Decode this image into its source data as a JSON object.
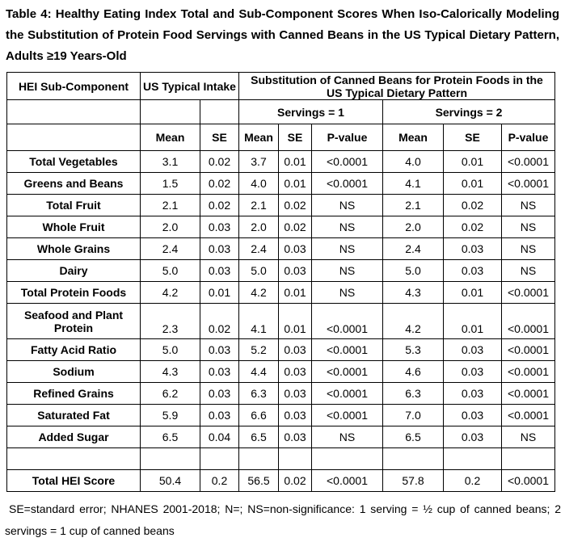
{
  "document": {
    "title": "Table 4: Healthy Eating Index Total and Sub-Component Scores When Iso-Calorically Modeling the Substitution of Protein Food Servings with Canned Beans in the US Typical Dietary Pattern, Adults ≥19 Years-Old",
    "footnote": "SE=standard error; NHANES 2001-2018; N=; NS=non-significance: 1 serving = ½ cup of canned beans; 2 servings = 1 cup of canned beans"
  },
  "colors": {
    "background": "#ffffff",
    "text": "#000000",
    "border": "#000000"
  },
  "table": {
    "corner_label": "HEI Sub-Component",
    "us_typical_header": "US Typical Intake",
    "substitution_header": "Substitution of Canned Beans for Protein Foods in the US Typical Dietary Pattern",
    "servings_headers": [
      "Servings = 1",
      "Servings = 2"
    ],
    "stat_headers": [
      "Mean",
      "SE",
      "Mean",
      "SE",
      "P-value",
      "Mean",
      "SE",
      "P-value"
    ],
    "rows": [
      {
        "label": "Total Vegetables",
        "values": [
          "3.1",
          "0.02",
          "3.7",
          "0.01",
          "<0.0001",
          "4.0",
          "0.01",
          "<0.0001"
        ]
      },
      {
        "label": "Greens and Beans",
        "values": [
          "1.5",
          "0.02",
          "4.0",
          "0.01",
          "<0.0001",
          "4.1",
          "0.01",
          "<0.0001"
        ]
      },
      {
        "label": "Total Fruit",
        "values": [
          "2.1",
          "0.02",
          "2.1",
          "0.02",
          "NS",
          "2.1",
          "0.02",
          "NS"
        ]
      },
      {
        "label": "Whole Fruit",
        "values": [
          "2.0",
          "0.03",
          "2.0",
          "0.02",
          "NS",
          "2.0",
          "0.02",
          "NS"
        ]
      },
      {
        "label": "Whole Grains",
        "values": [
          "2.4",
          "0.03",
          "2.4",
          "0.03",
          "NS",
          "2.4",
          "0.03",
          "NS"
        ]
      },
      {
        "label": "Dairy",
        "values": [
          "5.0",
          "0.03",
          "5.0",
          "0.03",
          "NS",
          "5.0",
          "0.03",
          "NS"
        ]
      },
      {
        "label": "Total Protein Foods",
        "values": [
          "4.2",
          "0.01",
          "4.2",
          "0.01",
          "NS",
          "4.3",
          "0.01",
          "<0.0001"
        ]
      },
      {
        "label": "Seafood and Plant Protein",
        "tall": true,
        "values": [
          "2.3",
          "0.02",
          "4.1",
          "0.01",
          "<0.0001",
          "4.2",
          "0.01",
          "<0.0001"
        ]
      },
      {
        "label": "Fatty Acid Ratio",
        "values": [
          "5.0",
          "0.03",
          "5.2",
          "0.03",
          "<0.0001",
          "5.3",
          "0.03",
          "<0.0001"
        ]
      },
      {
        "label": "Sodium",
        "values": [
          "4.3",
          "0.03",
          "4.4",
          "0.03",
          "<0.0001",
          "4.6",
          "0.03",
          "<0.0001"
        ]
      },
      {
        "label": "Refined Grains",
        "values": [
          "6.2",
          "0.03",
          "6.3",
          "0.03",
          "<0.0001",
          "6.3",
          "0.03",
          "<0.0001"
        ]
      },
      {
        "label": "Saturated Fat",
        "values": [
          "5.9",
          "0.03",
          "6.6",
          "0.03",
          "<0.0001",
          "7.0",
          "0.03",
          "<0.0001"
        ]
      },
      {
        "label": "Added Sugar",
        "values": [
          "6.5",
          "0.04",
          "6.5",
          "0.03",
          "NS",
          "6.5",
          "0.03",
          "NS"
        ]
      },
      {
        "label": "",
        "spacer": true,
        "values": [
          "",
          "",
          "",
          "",
          "",
          "",
          "",
          ""
        ]
      },
      {
        "label": "Total HEI Score",
        "values": [
          "50.4",
          "0.2",
          "56.5",
          "0.02",
          "<0.0001",
          "57.8",
          "0.2",
          "<0.0001"
        ]
      }
    ]
  }
}
